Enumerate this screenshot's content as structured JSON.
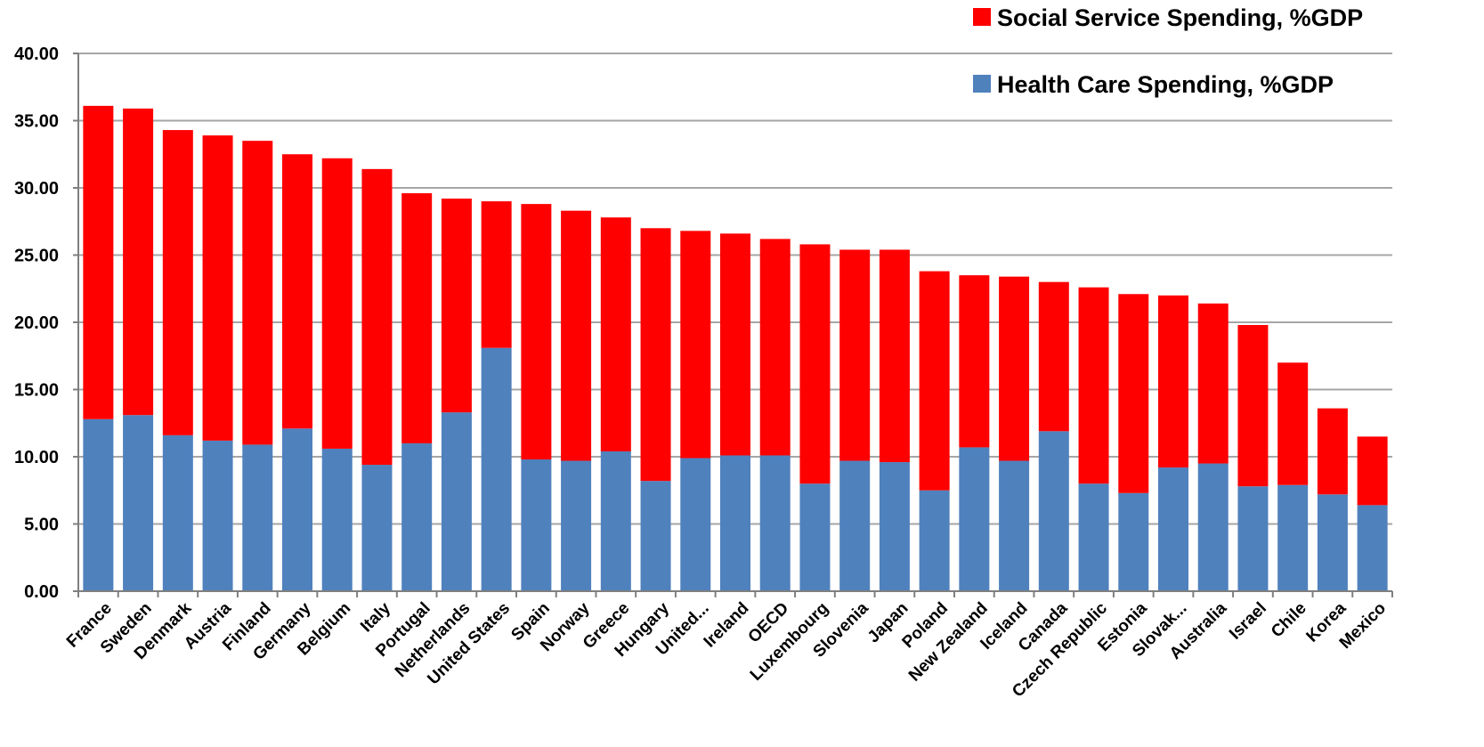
{
  "chart_data": {
    "type": "bar",
    "stacked": true,
    "categories": [
      "France",
      "Sweden",
      "Denmark",
      "Austria",
      "Finland",
      "Germany",
      "Belgium",
      "Italy",
      "Portugal",
      "Netherlands",
      "United States",
      "Spain",
      "Norway",
      "Greece",
      "Hungary",
      "United...",
      "Ireland",
      "OECD",
      "Luxembourg",
      "Slovenia",
      "Japan",
      "Poland",
      "New Zealand",
      "Iceland",
      "Canada",
      "Czech Republic",
      "Estonia",
      "Slovak...",
      "Australia",
      "Israel",
      "Chile",
      "Korea",
      "Mexico"
    ],
    "series": [
      {
        "name": "Health Care Spending, %GDP",
        "color": "#4f81bd",
        "values": [
          12.8,
          13.1,
          11.6,
          11.2,
          10.9,
          12.1,
          10.6,
          9.4,
          11.0,
          13.3,
          18.1,
          9.8,
          9.7,
          10.4,
          8.2,
          9.9,
          10.1,
          10.1,
          8.0,
          9.7,
          9.6,
          7.5,
          10.7,
          9.7,
          11.9,
          8.0,
          7.3,
          9.2,
          9.5,
          7.8,
          7.9,
          7.2,
          6.4
        ]
      },
      {
        "name": "Social Service Spending, %GDP",
        "color": "#ff0000",
        "values": [
          23.3,
          22.8,
          22.7,
          22.7,
          22.6,
          20.4,
          21.6,
          22.0,
          18.6,
          15.9,
          10.9,
          19.0,
          18.6,
          17.4,
          18.8,
          16.9,
          16.5,
          16.1,
          17.8,
          15.7,
          15.8,
          16.3,
          12.8,
          13.7,
          11.1,
          14.6,
          14.8,
          12.8,
          11.9,
          12.0,
          9.1,
          6.4,
          5.1
        ]
      }
    ],
    "totals": [
      36.1,
      35.9,
      34.3,
      33.9,
      33.5,
      32.5,
      32.2,
      31.4,
      29.6,
      29.2,
      29.0,
      28.8,
      28.3,
      27.8,
      27.0,
      26.8,
      26.6,
      26.2,
      25.8,
      25.4,
      25.4,
      23.8,
      23.5,
      23.4,
      23.0,
      22.6,
      22.1,
      22.0,
      21.4,
      19.8,
      17.0,
      13.6,
      11.5
    ],
    "ylim": [
      0,
      40
    ],
    "yticks": [
      "0.00",
      "5.00",
      "10.00",
      "15.00",
      "20.00",
      "25.00",
      "30.00",
      "35.00",
      "40.00"
    ],
    "title": "",
    "xlabel": "",
    "ylabel": "",
    "grid": true,
    "legend_position": "top-right"
  }
}
